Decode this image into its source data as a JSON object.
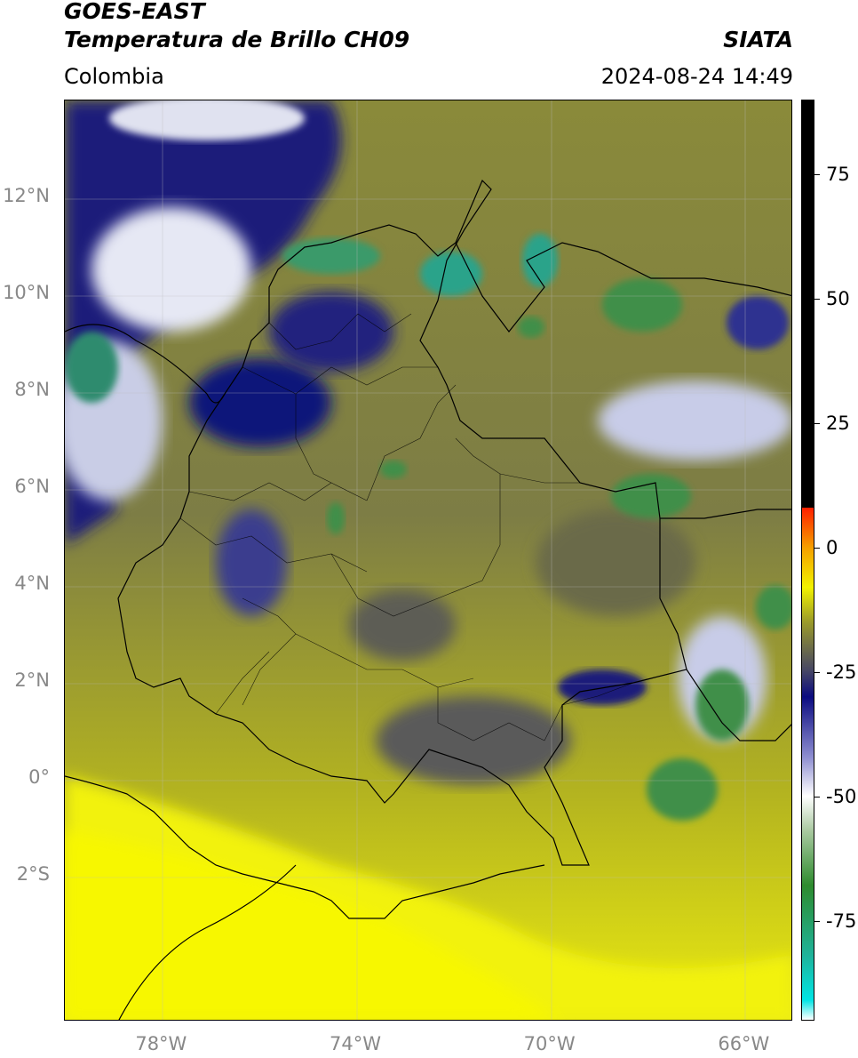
{
  "header": {
    "satellite": "GOES-EAST",
    "product": "Temperatura de Brillo CH09",
    "organization": "SIATA",
    "region": "Colombia",
    "timestamp": "2024-08-24 14:49"
  },
  "map": {
    "lon_range": [
      -80,
      -65
    ],
    "lat_range": [
      -5,
      14
    ],
    "lat_ticks": [
      {
        "value": 12,
        "label": "12°N"
      },
      {
        "value": 10,
        "label": "10°N"
      },
      {
        "value": 8,
        "label": "8°N"
      },
      {
        "value": 6,
        "label": "6°N"
      },
      {
        "value": 4,
        "label": "4°N"
      },
      {
        "value": 2,
        "label": "2°N"
      },
      {
        "value": 0,
        "label": "0°"
      },
      {
        "value": -2,
        "label": "2°S"
      }
    ],
    "lon_ticks": [
      {
        "value": -78,
        "label": "78°W"
      },
      {
        "value": -74,
        "label": "74°W"
      },
      {
        "value": -70,
        "label": "70°W"
      },
      {
        "value": -66,
        "label": "66°W"
      }
    ],
    "gridlines": true
  },
  "colorbar": {
    "range": [
      -95,
      90
    ],
    "ticks": [
      {
        "value": 75,
        "label": "75"
      },
      {
        "value": 50,
        "label": "50"
      },
      {
        "value": 25,
        "label": "25"
      },
      {
        "value": 0,
        "label": "0"
      },
      {
        "value": -25,
        "label": "-25"
      },
      {
        "value": -50,
        "label": "-50"
      },
      {
        "value": -75,
        "label": "-75"
      }
    ],
    "stops": [
      {
        "value": -95,
        "color": "#ffffff"
      },
      {
        "value": -91,
        "color": "#00e5e5"
      },
      {
        "value": -82,
        "color": "#1fb39a"
      },
      {
        "value": -68,
        "color": "#2e8b2e"
      },
      {
        "value": -57,
        "color": "#a9c9a0"
      },
      {
        "value": -50,
        "color": "#ffffff"
      },
      {
        "value": -42,
        "color": "#8c8cd0"
      },
      {
        "value": -30,
        "color": "#0b0b80"
      },
      {
        "value": -25,
        "color": "#444466"
      },
      {
        "value": -15,
        "color": "#9a9a2a"
      },
      {
        "value": -8,
        "color": "#f2f200"
      },
      {
        "value": 0,
        "color": "#f5a000"
      },
      {
        "value": 8,
        "color": "#ff2000"
      },
      {
        "value": 8.1,
        "color": "#000000"
      },
      {
        "value": 90,
        "color": "#000000"
      }
    ]
  }
}
